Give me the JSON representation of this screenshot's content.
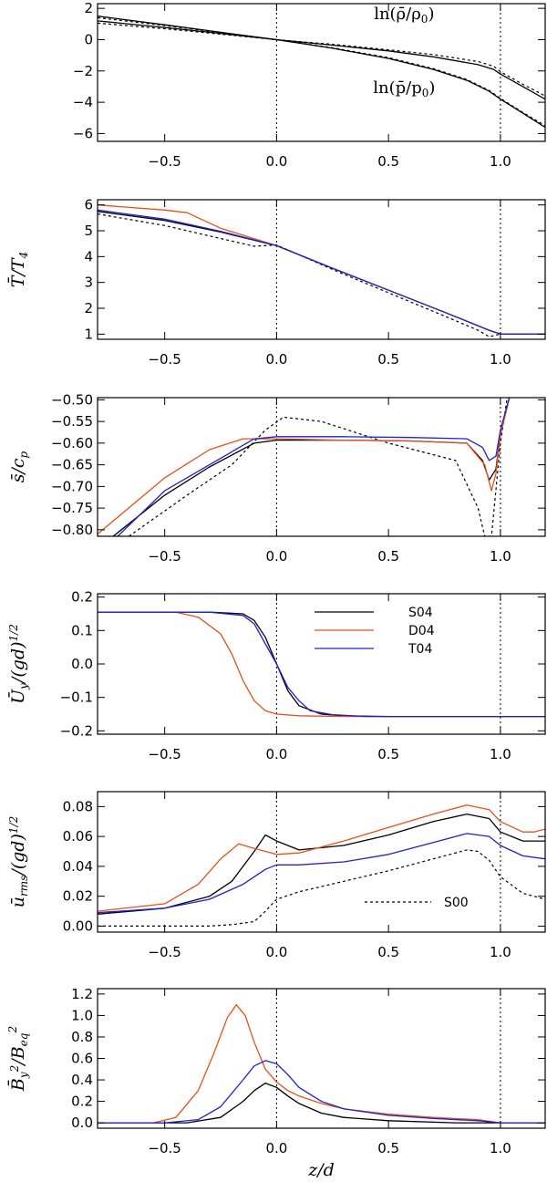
{
  "chart_data": [
    {
      "type": "line",
      "id": "p1",
      "ylabel": "",
      "xlim": [
        -0.8,
        1.2
      ],
      "ylim": [
        -6.5,
        2.3
      ],
      "yticks": [
        "2",
        "0",
        "−2",
        "−4",
        "−6"
      ],
      "yticks_values": [
        2,
        0,
        -2,
        -4,
        -6
      ],
      "xticks": [
        "−0.5",
        "0.0",
        "0.5",
        "1.0"
      ],
      "xticks_values": [
        -0.5,
        0,
        0.5,
        1.0
      ],
      "vlines": [
        0,
        1
      ],
      "annotations": [
        {
          "text": "ln(ρ̄/ρ",
          "sub": "0",
          "tail": ")",
          "x": 0.57,
          "y": 1.3
        },
        {
          "text": "ln(p̄/p",
          "sub": "0",
          "tail": ")",
          "x": 0.57,
          "y": -3.4
        }
      ],
      "series": [
        {
          "name": "ln rho",
          "color": "#000000",
          "dash": false,
          "x": [
            -0.8,
            -0.5,
            -0.25,
            0,
            0.25,
            0.5,
            0.7,
            0.9,
            0.97,
            1.0,
            1.1,
            1.2
          ],
          "y": [
            1.2,
            0.78,
            0.4,
            0.0,
            -0.35,
            -0.72,
            -1.1,
            -1.6,
            -1.9,
            -2.2,
            -3.0,
            -3.8
          ]
        },
        {
          "name": "ln rho S00",
          "color": "#000000",
          "dash": true,
          "x": [
            -0.8,
            -0.5,
            -0.25,
            0,
            0.25,
            0.5,
            0.7,
            0.9,
            0.97,
            1.0,
            1.1,
            1.2
          ],
          "y": [
            1.05,
            0.7,
            0.35,
            0.0,
            -0.3,
            -0.65,
            -0.95,
            -1.4,
            -1.7,
            -2.05,
            -2.85,
            -3.6
          ]
        },
        {
          "name": "ln p",
          "color": "#000000",
          "dash": false,
          "x": [
            -0.8,
            -0.5,
            -0.25,
            0,
            0.25,
            0.5,
            0.7,
            0.85,
            0.95,
            1.0,
            1.1,
            1.2
          ],
          "y": [
            1.5,
            0.95,
            0.47,
            0.0,
            -0.55,
            -1.2,
            -1.9,
            -2.6,
            -3.3,
            -3.8,
            -4.7,
            -5.6
          ]
        },
        {
          "name": "ln p S00",
          "color": "#000000",
          "dash": true,
          "x": [
            -0.8,
            -0.5,
            -0.25,
            0,
            0.25,
            0.5,
            0.7,
            0.85,
            0.95,
            1.0,
            1.1,
            1.2
          ],
          "y": [
            1.4,
            0.9,
            0.45,
            0.0,
            -0.52,
            -1.15,
            -1.85,
            -2.55,
            -3.25,
            -3.75,
            -4.65,
            -5.5
          ]
        }
      ]
    },
    {
      "type": "line",
      "id": "p2",
      "ylabel": "T̄/T",
      "ylabel_sub": "4",
      "xlim": [
        -0.8,
        1.2
      ],
      "ylim": [
        0.8,
        6.2
      ],
      "yticks": [
        "6",
        "5",
        "4",
        "3",
        "2",
        "1"
      ],
      "yticks_values": [
        6,
        5,
        4,
        3,
        2,
        1
      ],
      "xticks": [
        "−0.5",
        "0.0",
        "0.5",
        "1.0"
      ],
      "xticks_values": [
        -0.5,
        0,
        0.5,
        1.0
      ],
      "vlines": [
        0,
        1
      ],
      "series": [
        {
          "name": "S00",
          "color": "#000000",
          "dash": true,
          "x": [
            -0.8,
            -0.5,
            -0.25,
            -0.1,
            0,
            0.25,
            0.5,
            0.75,
            0.9,
            0.95,
            1.0,
            1.2
          ],
          "y": [
            5.65,
            5.2,
            4.7,
            4.4,
            4.45,
            3.5,
            2.6,
            1.7,
            1.15,
            0.9,
            1.0,
            1.0
          ]
        },
        {
          "name": "S04",
          "color": "#000000",
          "dash": false,
          "x": [
            -0.8,
            -0.5,
            -0.25,
            0,
            0.25,
            0.5,
            0.75,
            0.95,
            1.0,
            1.2
          ],
          "y": [
            5.75,
            5.4,
            4.95,
            4.42,
            3.55,
            2.7,
            1.85,
            1.15,
            1.0,
            1.0
          ]
        },
        {
          "name": "D04",
          "color": "#e8501a",
          "dash": false,
          "x": [
            -0.8,
            -0.5,
            -0.4,
            -0.25,
            0,
            0.25,
            0.5,
            0.75,
            0.95,
            1.0,
            1.2
          ],
          "y": [
            6.0,
            5.8,
            5.7,
            5.1,
            4.42,
            3.55,
            2.7,
            1.85,
            1.15,
            1.0,
            1.0
          ]
        },
        {
          "name": "T04",
          "color": "#2020d0",
          "dash": false,
          "x": [
            -0.8,
            -0.5,
            -0.25,
            0,
            0.25,
            0.5,
            0.75,
            0.95,
            1.0,
            1.2
          ],
          "y": [
            5.8,
            5.45,
            4.98,
            4.42,
            3.55,
            2.7,
            1.85,
            1.15,
            1.0,
            1.0
          ]
        }
      ]
    },
    {
      "type": "line",
      "id": "p3",
      "ylabel": "s̄/c",
      "ylabel_sub": "p",
      "xlim": [
        -0.8,
        1.2
      ],
      "ylim": [
        -0.815,
        -0.495
      ],
      "yticks": [
        "−0.50",
        "−0.55",
        "−0.60",
        "−0.65",
        "−0.70",
        "−0.75",
        "−0.80"
      ],
      "yticks_values": [
        -0.5,
        -0.55,
        -0.6,
        -0.65,
        -0.7,
        -0.75,
        -0.8
      ],
      "xticks": [
        "−0.5",
        "0.0",
        "0.5",
        "1.0"
      ],
      "xticks_values": [
        -0.5,
        0,
        0.5,
        1.0
      ],
      "vlines": [
        0,
        1
      ],
      "series": [
        {
          "name": "S00",
          "color": "#000000",
          "dash": true,
          "x": [
            -0.66,
            -0.4,
            -0.2,
            -0.05,
            0.03,
            0.2,
            0.5,
            0.8,
            0.9,
            0.93,
            0.96,
            1.0,
            1.03
          ],
          "y": [
            -0.815,
            -0.72,
            -0.65,
            -0.57,
            -0.54,
            -0.55,
            -0.6,
            -0.64,
            -0.75,
            -0.815,
            -0.815,
            -0.6,
            -0.495
          ]
        },
        {
          "name": "S04",
          "color": "#000000",
          "dash": false,
          "x": [
            -0.73,
            -0.5,
            -0.3,
            -0.1,
            0,
            0.3,
            0.6,
            0.85,
            0.92,
            0.95,
            0.98,
            1.0,
            1.04
          ],
          "y": [
            -0.815,
            -0.72,
            -0.655,
            -0.6,
            -0.593,
            -0.593,
            -0.595,
            -0.6,
            -0.64,
            -0.685,
            -0.66,
            -0.58,
            -0.495
          ]
        },
        {
          "name": "D04",
          "color": "#e8501a",
          "dash": false,
          "x": [
            -0.8,
            -0.5,
            -0.3,
            -0.15,
            0,
            0.3,
            0.6,
            0.85,
            0.93,
            0.96,
            0.98,
            1.0,
            1.04
          ],
          "y": [
            -0.81,
            -0.68,
            -0.615,
            -0.59,
            -0.59,
            -0.593,
            -0.595,
            -0.6,
            -0.65,
            -0.71,
            -0.67,
            -0.58,
            -0.495
          ]
        },
        {
          "name": "T04",
          "color": "#2020d0",
          "dash": false,
          "x": [
            -0.71,
            -0.5,
            -0.3,
            -0.1,
            0,
            0.3,
            0.6,
            0.85,
            0.92,
            0.95,
            0.98,
            1.0,
            1.04
          ],
          "y": [
            -0.815,
            -0.71,
            -0.65,
            -0.59,
            -0.585,
            -0.585,
            -0.587,
            -0.59,
            -0.61,
            -0.64,
            -0.63,
            -0.57,
            -0.495
          ]
        }
      ]
    },
    {
      "type": "line",
      "id": "p4",
      "ylabel": "Ū",
      "ylabel_sub": "y",
      "ylabel_tail": "/(gd)",
      "ylabel_sup": "1/2",
      "xlim": [
        -0.8,
        1.2
      ],
      "ylim": [
        -0.21,
        0.21
      ],
      "yticks": [
        "0.2",
        "0.1",
        "0.0",
        "−0.1",
        "−0.2"
      ],
      "yticks_values": [
        0.2,
        0.1,
        0.0,
        -0.1,
        -0.2
      ],
      "xticks": [
        "−0.5",
        "0.0",
        "0.5",
        "1.0"
      ],
      "xticks_values": [
        -0.5,
        0,
        0.5,
        1.0
      ],
      "vlines": [
        0,
        1
      ],
      "legend": {
        "placement": "top-center",
        "entries": [
          {
            "label": "S04",
            "color": "#000000"
          },
          {
            "label": "D04",
            "color": "#e8501a"
          },
          {
            "label": "T04",
            "color": "#2020d0"
          }
        ]
      },
      "series": [
        {
          "name": "S04",
          "color": "#000000",
          "dash": false,
          "x": [
            -0.8,
            -0.3,
            -0.15,
            -0.1,
            -0.05,
            0,
            0.05,
            0.1,
            0.2,
            0.3,
            0.5,
            1.2
          ],
          "y": [
            0.155,
            0.155,
            0.15,
            0.13,
            0.08,
            0.0,
            -0.08,
            -0.125,
            -0.15,
            -0.155,
            -0.157,
            -0.157
          ]
        },
        {
          "name": "D04",
          "color": "#e8501a",
          "dash": false,
          "x": [
            -0.8,
            -0.45,
            -0.35,
            -0.25,
            -0.2,
            -0.15,
            -0.1,
            -0.05,
            0,
            0.1,
            0.3,
            1.2
          ],
          "y": [
            0.155,
            0.155,
            0.14,
            0.09,
            0.03,
            -0.05,
            -0.11,
            -0.14,
            -0.15,
            -0.155,
            -0.157,
            -0.157
          ]
        },
        {
          "name": "T04",
          "color": "#2020d0",
          "dash": false,
          "x": [
            -0.8,
            -0.3,
            -0.15,
            -0.1,
            -0.05,
            0,
            0.05,
            0.1,
            0.15,
            0.25,
            0.4,
            1.2
          ],
          "y": [
            0.155,
            0.155,
            0.145,
            0.12,
            0.06,
            0.0,
            -0.07,
            -0.11,
            -0.14,
            -0.152,
            -0.157,
            -0.157
          ]
        }
      ]
    },
    {
      "type": "line",
      "id": "p5",
      "ylabel": "ū",
      "ylabel_sub": "rms",
      "ylabel_tail": "/(gd)",
      "ylabel_sup": "1/2",
      "xlim": [
        -0.8,
        1.2
      ],
      "ylim": [
        -0.004,
        0.09
      ],
      "yticks": [
        "0.08",
        "0.06",
        "0.04",
        "0.02",
        "0.00"
      ],
      "yticks_values": [
        0.08,
        0.06,
        0.04,
        0.02,
        0.0
      ],
      "xticks": [
        "−0.5",
        "0.0",
        "0.5",
        "1.0"
      ],
      "xticks_values": [
        -0.5,
        0,
        0.5,
        1.0
      ],
      "vlines": [
        0,
        1
      ],
      "legend": {
        "placement": "lower-right",
        "entries": [
          {
            "label": "S00",
            "color": "#000000",
            "dash": true
          }
        ]
      },
      "series": [
        {
          "name": "S00",
          "color": "#000000",
          "dash": true,
          "x": [
            -0.8,
            -0.3,
            -0.2,
            -0.1,
            -0.05,
            0,
            0.1,
            0.3,
            0.5,
            0.7,
            0.85,
            0.9,
            0.95,
            1.0,
            1.1,
            1.2
          ],
          "y": [
            0.0,
            0.0,
            0.001,
            0.003,
            0.01,
            0.018,
            0.023,
            0.03,
            0.037,
            0.045,
            0.051,
            0.05,
            0.044,
            0.033,
            0.022,
            0.018
          ]
        },
        {
          "name": "S04",
          "color": "#000000",
          "dash": false,
          "x": [
            -0.8,
            -0.5,
            -0.3,
            -0.2,
            -0.1,
            -0.05,
            0,
            0.1,
            0.3,
            0.5,
            0.7,
            0.85,
            0.95,
            1.0,
            1.1,
            1.2
          ],
          "y": [
            0.008,
            0.012,
            0.02,
            0.03,
            0.05,
            0.061,
            0.057,
            0.051,
            0.054,
            0.061,
            0.07,
            0.075,
            0.072,
            0.063,
            0.057,
            0.057
          ]
        },
        {
          "name": "D04",
          "color": "#e8501a",
          "dash": false,
          "x": [
            -0.8,
            -0.5,
            -0.35,
            -0.25,
            -0.17,
            -0.1,
            0,
            0.1,
            0.3,
            0.5,
            0.7,
            0.85,
            0.95,
            1.0,
            1.1,
            1.15,
            1.2
          ],
          "y": [
            0.01,
            0.015,
            0.028,
            0.045,
            0.055,
            0.052,
            0.048,
            0.049,
            0.057,
            0.066,
            0.075,
            0.081,
            0.078,
            0.07,
            0.063,
            0.063,
            0.065
          ]
        },
        {
          "name": "T04",
          "color": "#2020d0",
          "dash": false,
          "x": [
            -0.8,
            -0.5,
            -0.3,
            -0.15,
            -0.05,
            0,
            0.1,
            0.3,
            0.5,
            0.7,
            0.85,
            0.95,
            1.0,
            1.1,
            1.2
          ],
          "y": [
            0.009,
            0.012,
            0.018,
            0.028,
            0.038,
            0.041,
            0.041,
            0.043,
            0.048,
            0.056,
            0.062,
            0.06,
            0.054,
            0.047,
            0.045
          ]
        }
      ]
    },
    {
      "type": "line",
      "id": "p6",
      "ylabel": "B̄",
      "ylabel_sub": "y",
      "ylabel_tail": "/B",
      "ylabel_sup": "2",
      "ylabel_sub2": "eq",
      "ylabel_sup2": "2",
      "xlabel": "z/d",
      "xlim": [
        -0.8,
        1.2
      ],
      "ylim": [
        -0.05,
        1.25
      ],
      "yticks": [
        "1.2",
        "1.0",
        "0.8",
        "0.6",
        "0.4",
        "0.2",
        "0.0"
      ],
      "yticks_values": [
        1.2,
        1.0,
        0.8,
        0.6,
        0.4,
        0.2,
        0.0
      ],
      "xticks": [
        "−0.5",
        "0.0",
        "0.5",
        "1.0"
      ],
      "xticks_values": [
        -0.5,
        0,
        0.5,
        1.0
      ],
      "vlines": [
        0,
        1
      ],
      "series": [
        {
          "name": "S04",
          "color": "#000000",
          "dash": false,
          "x": [
            -0.8,
            -0.4,
            -0.25,
            -0.15,
            -0.1,
            -0.05,
            0,
            0.05,
            0.1,
            0.2,
            0.3,
            0.5,
            0.8,
            1.2
          ],
          "y": [
            0.0,
            0.0,
            0.05,
            0.2,
            0.3,
            0.37,
            0.33,
            0.25,
            0.18,
            0.09,
            0.05,
            0.02,
            0.0,
            0.0
          ]
        },
        {
          "name": "D04",
          "color": "#e8501a",
          "dash": false,
          "x": [
            -0.8,
            -0.55,
            -0.45,
            -0.35,
            -0.28,
            -0.22,
            -0.18,
            -0.14,
            -0.1,
            -0.05,
            0,
            0.05,
            0.1,
            0.2,
            0.3,
            0.5,
            0.7,
            0.9,
            1.0,
            1.2
          ],
          "y": [
            0.0,
            0.0,
            0.05,
            0.3,
            0.65,
            0.98,
            1.1,
            1.0,
            0.75,
            0.5,
            0.38,
            0.3,
            0.25,
            0.18,
            0.13,
            0.08,
            0.05,
            0.03,
            0.0,
            0.0
          ]
        },
        {
          "name": "T04",
          "color": "#2020d0",
          "dash": false,
          "x": [
            -0.8,
            -0.5,
            -0.35,
            -0.25,
            -0.15,
            -0.1,
            -0.05,
            0,
            0.05,
            0.1,
            0.2,
            0.3,
            0.5,
            0.7,
            0.9,
            1.0,
            1.2
          ],
          "y": [
            0.0,
            0.0,
            0.03,
            0.15,
            0.4,
            0.53,
            0.58,
            0.55,
            0.45,
            0.33,
            0.2,
            0.13,
            0.07,
            0.04,
            0.02,
            0.0,
            0.0
          ]
        }
      ]
    }
  ]
}
